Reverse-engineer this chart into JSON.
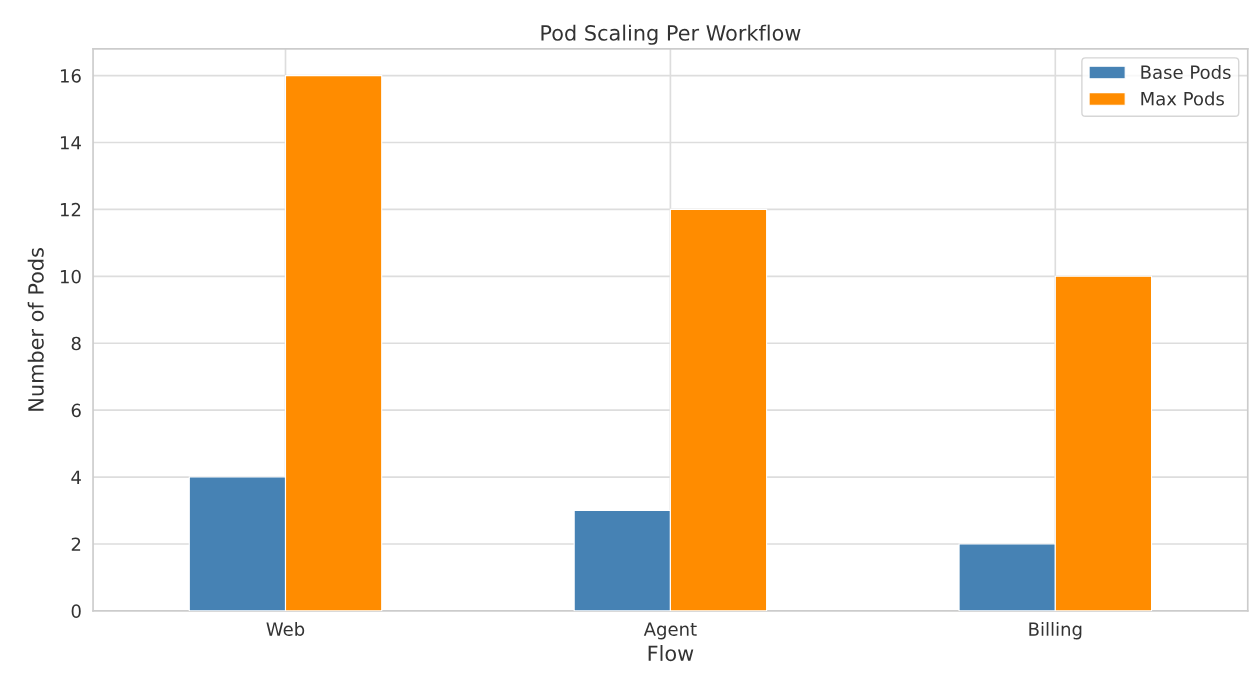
{
  "chart_data": {
    "type": "bar",
    "title": "Pod Scaling Per Workflow",
    "xlabel": "Flow",
    "ylabel": "Number of Pods",
    "categories": [
      "Web",
      "Agent",
      "Billing"
    ],
    "series": [
      {
        "name": "Base Pods",
        "color": "#4682b4",
        "values": [
          4,
          3,
          2
        ]
      },
      {
        "name": "Max Pods",
        "color": "#ff8c00",
        "values": [
          16,
          12,
          10
        ]
      }
    ],
    "ylim": [
      0,
      16.8
    ],
    "yticks": [
      0,
      2,
      4,
      6,
      8,
      10,
      12,
      14,
      16
    ],
    "grid": true,
    "legend": "top right"
  }
}
